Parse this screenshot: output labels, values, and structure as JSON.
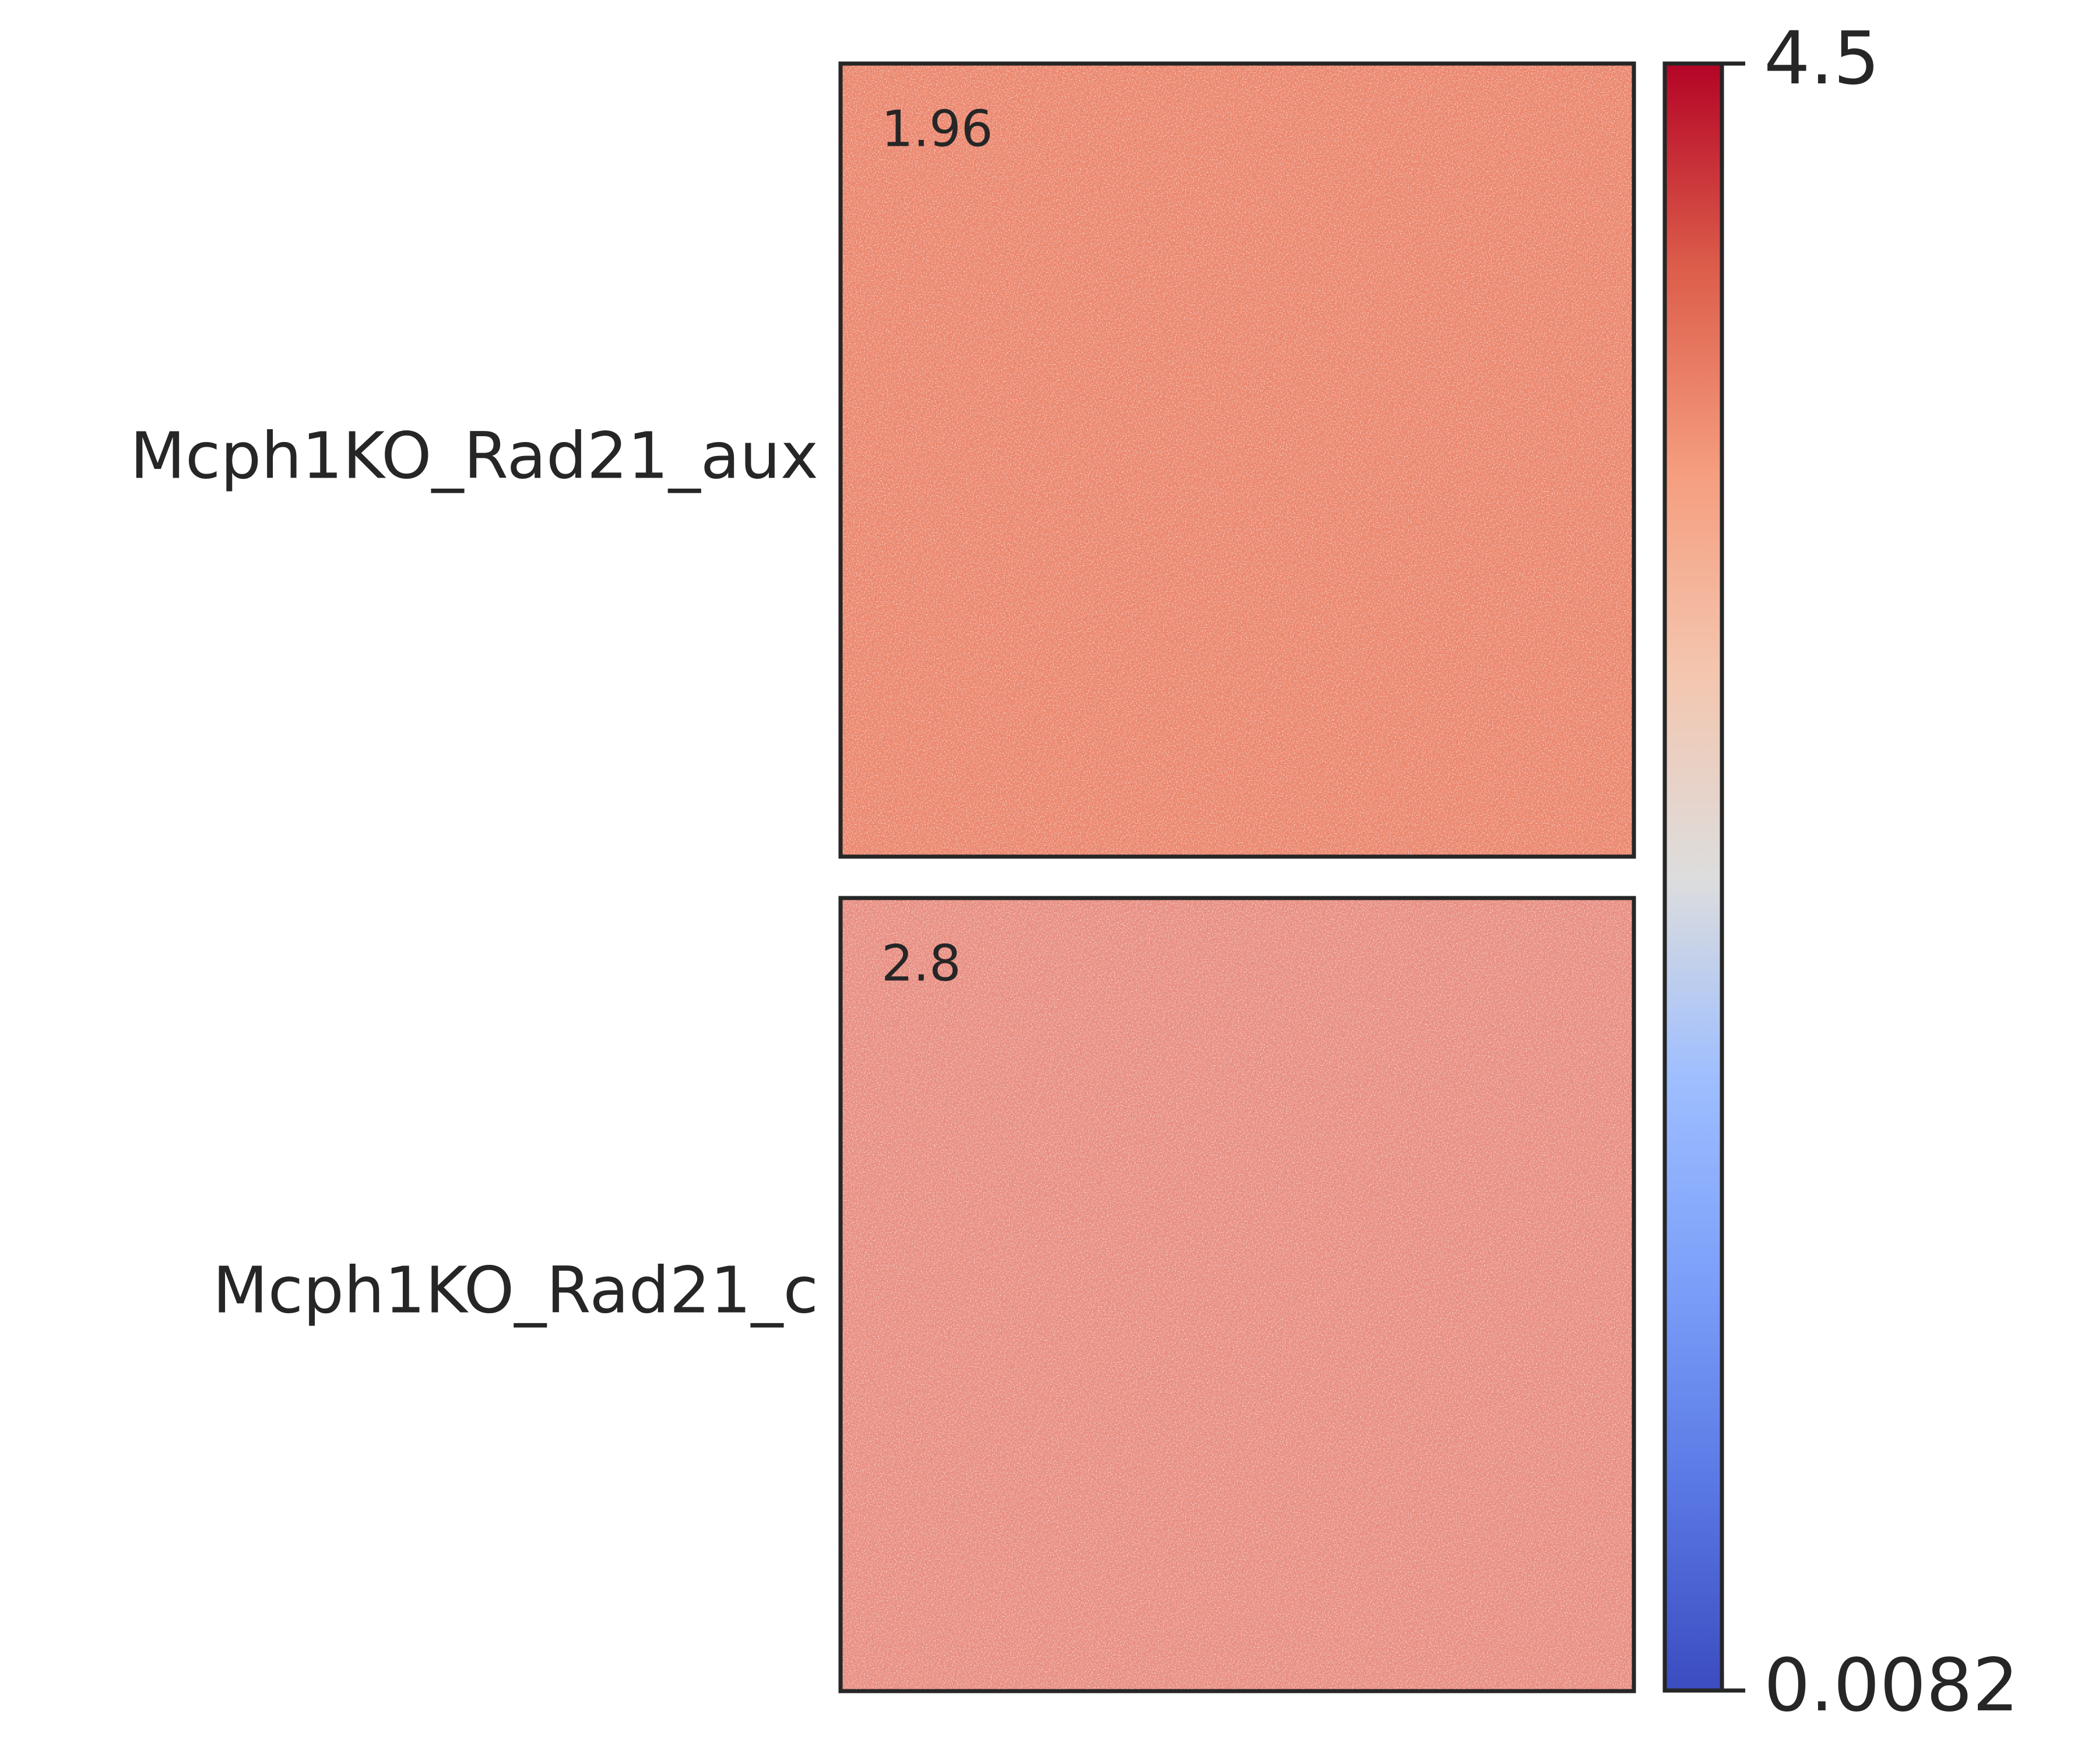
{
  "chart_data": {
    "type": "heatmap",
    "colormap": "coolwarm",
    "panels": [
      {
        "name": "Mcph1KO_Rad21_aux",
        "annotation": 1.96,
        "color": "#ec8c70"
      },
      {
        "name": "Mcph1KO_Rad21_c",
        "annotation": 2.8,
        "color": "#e99485"
      }
    ],
    "clim": [
      0.0082,
      4.5
    ],
    "cticks": [
      0.0082,
      4.5
    ]
  }
}
